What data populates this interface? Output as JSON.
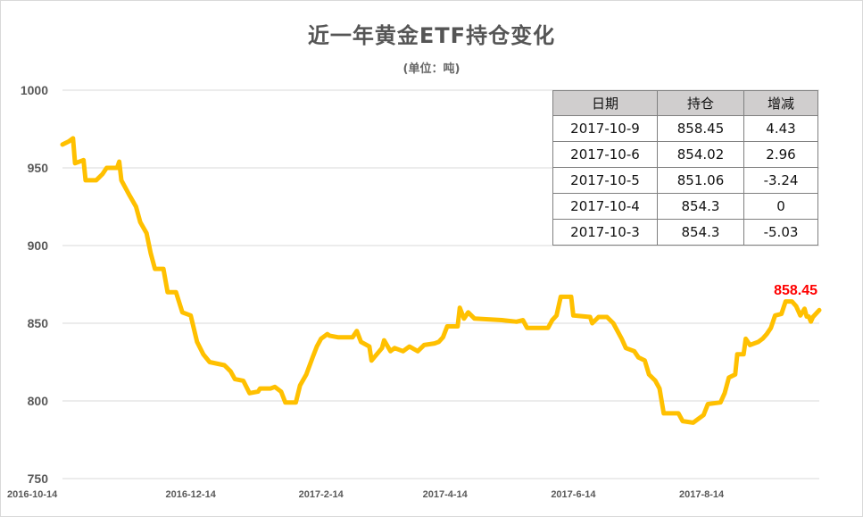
{
  "title": "近一年黄金ETF持仓变化",
  "subtitle": "(单位：吨)",
  "colors": {
    "line": "#FFC000",
    "last_label": "#FF0000",
    "grid": "#d9d9d9"
  },
  "table": {
    "headers": [
      "日期",
      "持仓",
      "增减"
    ],
    "rows": [
      [
        "2017-10-9",
        "858.45",
        "4.43"
      ],
      [
        "2017-10-6",
        "854.02",
        "2.96"
      ],
      [
        "2017-10-5",
        "851.06",
        "-3.24"
      ],
      [
        "2017-10-4",
        "854.3",
        "0"
      ],
      [
        "2017-10-3",
        "854.3",
        "-5.03"
      ]
    ]
  },
  "chart_data": {
    "type": "line",
    "ylim": [
      750,
      1000
    ],
    "yticks": [
      "1000",
      "950",
      "900",
      "850",
      "800",
      "750"
    ],
    "xticks": [
      "2016-10-14",
      "2016-12-14",
      "2017-2-14",
      "2017-4-14",
      "2017-6-14",
      "2017-8-14"
    ],
    "xlim": [
      "2016-10-14",
      "2017-10-09"
    ],
    "grid": true,
    "last_value_label": "858.45",
    "series": [
      {
        "points": [
          [
            "2016-10-14",
            965
          ],
          [
            "2016-10-17",
            967
          ],
          [
            "2016-10-19",
            969
          ],
          [
            "2016-10-20",
            953
          ],
          [
            "2016-10-24",
            955
          ],
          [
            "2016-10-25",
            942
          ],
          [
            "2016-10-30",
            942
          ],
          [
            "2016-11-02",
            946
          ],
          [
            "2016-11-04",
            950
          ],
          [
            "2016-11-09",
            950
          ],
          [
            "2016-11-10",
            954
          ],
          [
            "2016-11-11",
            942
          ],
          [
            "2016-11-15",
            932
          ],
          [
            "2016-11-18",
            925
          ],
          [
            "2016-11-20",
            915
          ],
          [
            "2016-11-23",
            908
          ],
          [
            "2016-11-25",
            895
          ],
          [
            "2016-11-27",
            885
          ],
          [
            "2016-12-01",
            885
          ],
          [
            "2016-12-03",
            870
          ],
          [
            "2016-12-07",
            870
          ],
          [
            "2016-12-10",
            857
          ],
          [
            "2016-12-14",
            855
          ],
          [
            "2016-12-17",
            838
          ],
          [
            "2016-12-20",
            830
          ],
          [
            "2016-12-23",
            825
          ],
          [
            "2016-12-30",
            823
          ],
          [
            "2017-01-02",
            819
          ],
          [
            "2017-01-04",
            814
          ],
          [
            "2017-01-08",
            813
          ],
          [
            "2017-01-11",
            805
          ],
          [
            "2017-01-15",
            806
          ],
          [
            "2017-01-16",
            808
          ],
          [
            "2017-01-21",
            808
          ],
          [
            "2017-01-23",
            809
          ],
          [
            "2017-01-26",
            806
          ],
          [
            "2017-01-28",
            799
          ],
          [
            "2017-02-02",
            799
          ],
          [
            "2017-02-04",
            810
          ],
          [
            "2017-02-07",
            817
          ],
          [
            "2017-02-10",
            828
          ],
          [
            "2017-02-12",
            835
          ],
          [
            "2017-02-14",
            840
          ],
          [
            "2017-02-17",
            843
          ],
          [
            "2017-02-18",
            842
          ],
          [
            "2017-02-22",
            841
          ],
          [
            "2017-03-01",
            841
          ],
          [
            "2017-03-03",
            845
          ],
          [
            "2017-03-05",
            838
          ],
          [
            "2017-03-09",
            835
          ],
          [
            "2017-03-10",
            826
          ],
          [
            "2017-03-15",
            834
          ],
          [
            "2017-03-16",
            839
          ],
          [
            "2017-03-19",
            832
          ],
          [
            "2017-03-21",
            834
          ],
          [
            "2017-03-25",
            832
          ],
          [
            "2017-03-28",
            835
          ],
          [
            "2017-04-01",
            832
          ],
          [
            "2017-04-04",
            836
          ],
          [
            "2017-04-09",
            837
          ],
          [
            "2017-04-11",
            838
          ],
          [
            "2017-04-13",
            841
          ],
          [
            "2017-04-15",
            848
          ],
          [
            "2017-04-20",
            848
          ],
          [
            "2017-04-21",
            860
          ],
          [
            "2017-04-23",
            853
          ],
          [
            "2017-04-25",
            857
          ],
          [
            "2017-04-28",
            853
          ],
          [
            "2017-05-11",
            852
          ],
          [
            "2017-05-18",
            851
          ],
          [
            "2017-05-21",
            852
          ],
          [
            "2017-05-23",
            847
          ],
          [
            "2017-06-02",
            847
          ],
          [
            "2017-06-04",
            852
          ],
          [
            "2017-06-06",
            855
          ],
          [
            "2017-06-08",
            867
          ],
          [
            "2017-06-13",
            867
          ],
          [
            "2017-06-14",
            855
          ],
          [
            "2017-06-22",
            854
          ],
          [
            "2017-06-23",
            850
          ],
          [
            "2017-06-26",
            854
          ],
          [
            "2017-06-30",
            854
          ],
          [
            "2017-07-03",
            850
          ],
          [
            "2017-07-07",
            840
          ],
          [
            "2017-07-09",
            834
          ],
          [
            "2017-07-13",
            832
          ],
          [
            "2017-07-15",
            828
          ],
          [
            "2017-07-18",
            826
          ],
          [
            "2017-07-20",
            817
          ],
          [
            "2017-07-23",
            813
          ],
          [
            "2017-07-25",
            808
          ],
          [
            "2017-07-27",
            792
          ],
          [
            "2017-08-03",
            792
          ],
          [
            "2017-08-05",
            787
          ],
          [
            "2017-08-10",
            786
          ],
          [
            "2017-08-12",
            788
          ],
          [
            "2017-08-15",
            791
          ],
          [
            "2017-08-17",
            798
          ],
          [
            "2017-08-23",
            799
          ],
          [
            "2017-08-25",
            805
          ],
          [
            "2017-08-27",
            815
          ],
          [
            "2017-08-30",
            817
          ],
          [
            "2017-08-31",
            830
          ],
          [
            "2017-09-03",
            830
          ],
          [
            "2017-09-04",
            840
          ],
          [
            "2017-09-06",
            836
          ],
          [
            "2017-09-10",
            838
          ],
          [
            "2017-09-12",
            840
          ],
          [
            "2017-09-14",
            843
          ],
          [
            "2017-09-16",
            847
          ],
          [
            "2017-09-18",
            855
          ],
          [
            "2017-09-21",
            856
          ],
          [
            "2017-09-23",
            864
          ],
          [
            "2017-09-26",
            864
          ],
          [
            "2017-09-28",
            861
          ],
          [
            "2017-09-30",
            855
          ],
          [
            "2017-10-02",
            859.33
          ],
          [
            "2017-10-03",
            854.3
          ],
          [
            "2017-10-04",
            854.3
          ],
          [
            "2017-10-05",
            851.06
          ],
          [
            "2017-10-06",
            854.02
          ],
          [
            "2017-10-09",
            858.45
          ]
        ]
      }
    ]
  }
}
